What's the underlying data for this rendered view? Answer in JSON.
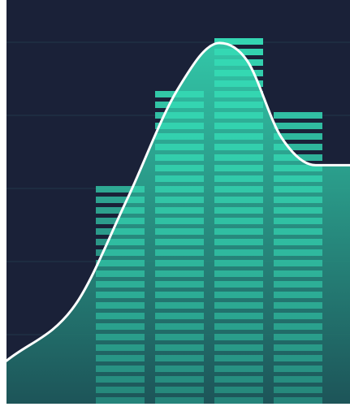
{
  "chart_data": {
    "type": "area",
    "title": "",
    "xlabel": "",
    "ylabel": "",
    "grid": true,
    "colors": {
      "background": "#1a2138",
      "grid": "#22384a",
      "curve": "#ffffff",
      "fill_top": "#35d9b4",
      "fill_bottom": "#1d5a5c",
      "bar_gap": "#1e4a52"
    },
    "curve": {
      "x": [
        0,
        0.2,
        0.35,
        0.5,
        0.62,
        0.7,
        0.8,
        0.9,
        1.0
      ],
      "y": [
        0.06,
        0.22,
        0.52,
        0.84,
        0.97,
        0.92,
        0.7,
        0.62,
        0.62
      ]
    },
    "bars": {
      "columns": 4,
      "levels": [
        0.58,
        0.84,
        0.99,
        0.78
      ]
    }
  }
}
